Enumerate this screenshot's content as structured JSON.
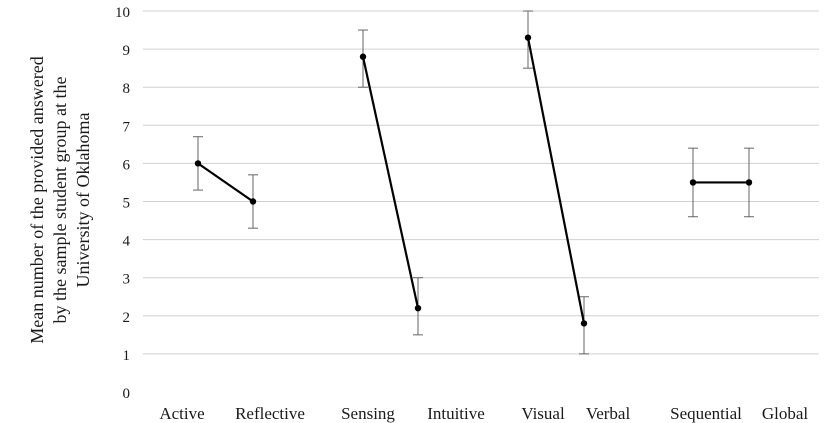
{
  "chart_data": {
    "type": "line",
    "title": "",
    "ylabel_lines": [
      "Mean number of the provided answered",
      "by the sample student group at the",
      "University of Oklahoma"
    ],
    "xlabel": "",
    "ylim": [
      0,
      10
    ],
    "yticks": [
      0,
      1,
      2,
      3,
      4,
      5,
      6,
      7,
      8,
      9,
      10
    ],
    "grid": "horizontal",
    "categories": [
      "Active",
      "Reflective",
      "Sensing",
      "Intuitive",
      "Visual",
      "Verbal",
      "Sequential",
      "Global"
    ],
    "series": [
      {
        "points": [
          {
            "category": "Active",
            "y": 6.0,
            "err_low": 5.3,
            "err_high": 6.7
          },
          {
            "category": "Reflective",
            "y": 5.0,
            "err_low": 4.3,
            "err_high": 5.7
          }
        ]
      },
      {
        "points": [
          {
            "category": "Sensing",
            "y": 8.8,
            "err_low": 8.0,
            "err_high": 9.5
          },
          {
            "category": "Intuitive",
            "y": 2.2,
            "err_low": 1.5,
            "err_high": 3.0
          }
        ]
      },
      {
        "points": [
          {
            "category": "Visual",
            "y": 9.3,
            "err_low": 8.5,
            "err_high": 10.0
          },
          {
            "category": "Verbal",
            "y": 1.8,
            "err_low": 1.0,
            "err_high": 2.5
          }
        ]
      },
      {
        "points": [
          {
            "category": "Sequential",
            "y": 5.5,
            "err_low": 4.6,
            "err_high": 6.4
          },
          {
            "category": "Global",
            "y": 5.5,
            "err_low": 4.6,
            "err_high": 6.4
          }
        ]
      }
    ]
  }
}
